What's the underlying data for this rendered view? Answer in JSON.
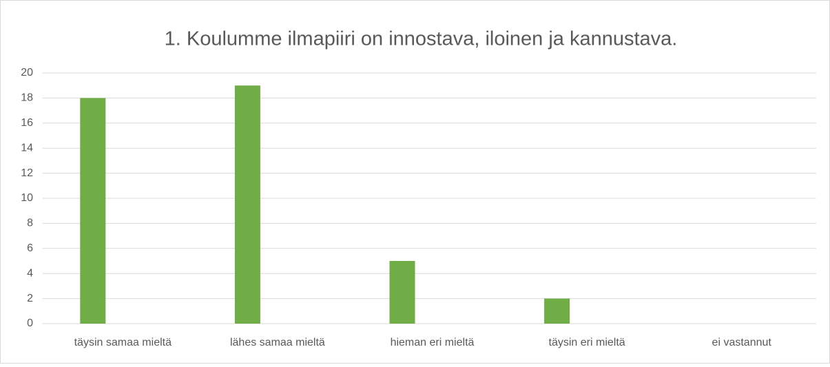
{
  "chart_data": {
    "type": "bar",
    "title": "1. Koulumme ilmapiiri on innostava, iloinen ja kannustava.",
    "categories": [
      "täysin samaa mieltä",
      "lähes samaa mieltä",
      "hieman eri mieltä",
      "täysin eri mieltä",
      "ei vastannut"
    ],
    "values": [
      18,
      19,
      5,
      2,
      0
    ],
    "color": "#70ad47",
    "ylim": [
      0,
      20
    ],
    "yticks": [
      0,
      2,
      4,
      6,
      8,
      10,
      12,
      14,
      16,
      18,
      20
    ],
    "grid": true
  }
}
